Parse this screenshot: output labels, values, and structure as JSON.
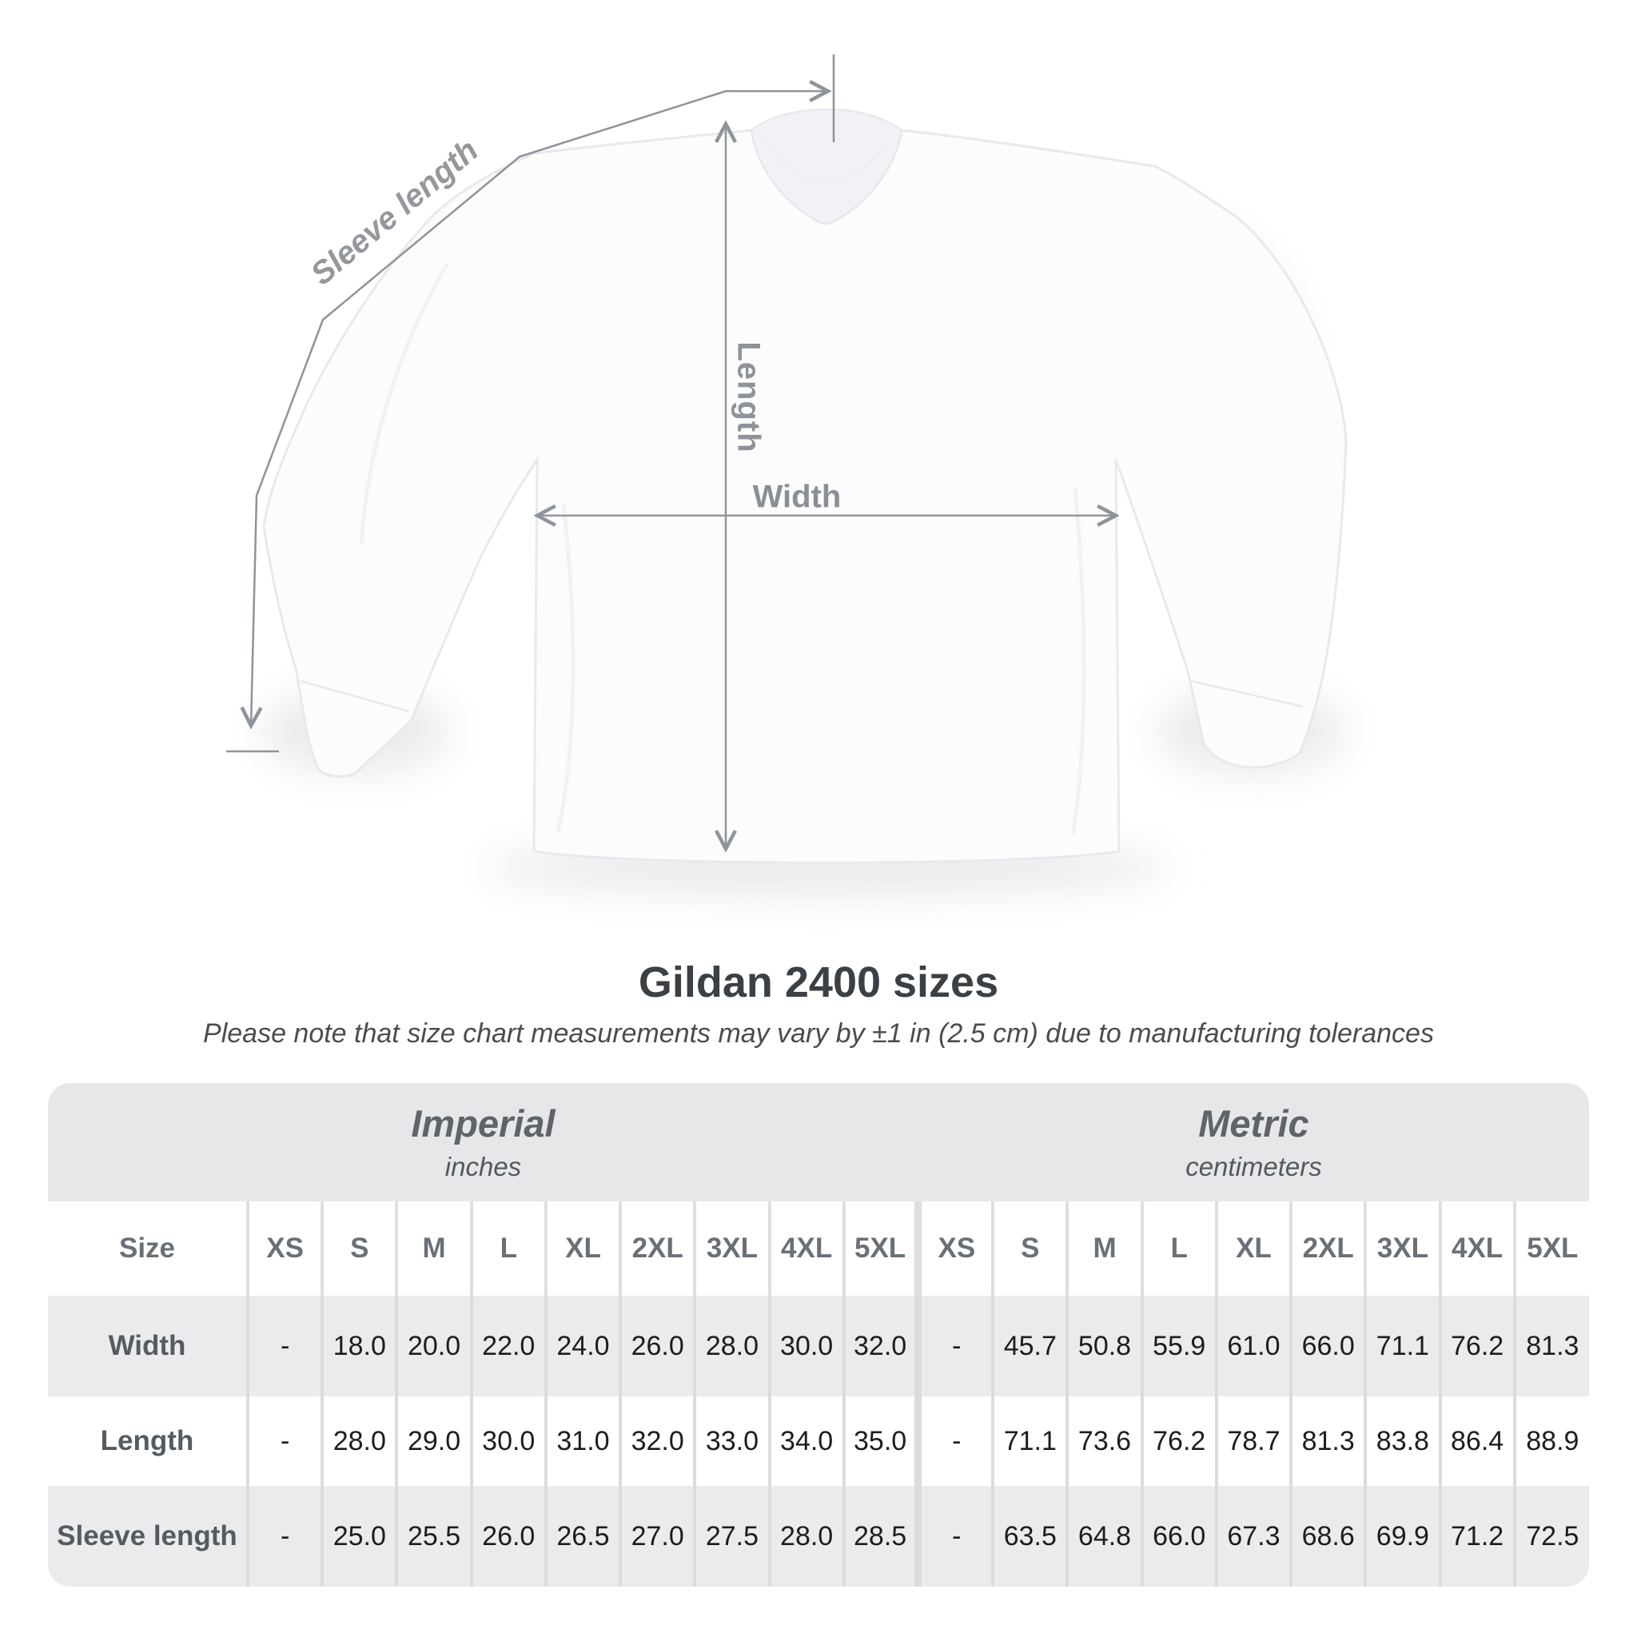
{
  "diagram": {
    "sleeve_length_label": "Sleeve length",
    "length_label": "Length",
    "width_label": "Width"
  },
  "title": "Gildan 2400 sizes",
  "subtitle": "Please note that size chart measurements may vary by ±1 in (2.5 cm) due to manufacturing tolerances",
  "table": {
    "corner_label": "Size",
    "sections": [
      {
        "name": "Imperial",
        "unit": "inches"
      },
      {
        "name": "Metric",
        "unit": "centimeters"
      }
    ],
    "sizes": [
      "XS",
      "S",
      "M",
      "L",
      "XL",
      "2XL",
      "3XL",
      "4XL",
      "5XL"
    ],
    "rows": [
      {
        "label": "Width",
        "imperial": [
          "-",
          "18.0",
          "20.0",
          "22.0",
          "24.0",
          "26.0",
          "28.0",
          "30.0",
          "32.0"
        ],
        "metric": [
          "-",
          "45.7",
          "50.8",
          "55.9",
          "61.0",
          "66.0",
          "71.1",
          "76.2",
          "81.3"
        ]
      },
      {
        "label": "Length",
        "imperial": [
          "-",
          "28.0",
          "29.0",
          "30.0",
          "31.0",
          "32.0",
          "33.0",
          "34.0",
          "35.0"
        ],
        "metric": [
          "-",
          "71.1",
          "73.6",
          "76.2",
          "78.7",
          "81.3",
          "83.8",
          "86.4",
          "88.9"
        ]
      },
      {
        "label": "Sleeve length",
        "imperial": [
          "-",
          "25.0",
          "25.5",
          "26.0",
          "26.5",
          "27.0",
          "27.5",
          "28.0",
          "28.5"
        ],
        "metric": [
          "-",
          "63.5",
          "64.8",
          "66.0",
          "67.3",
          "68.6",
          "69.9",
          "71.2",
          "72.5"
        ]
      }
    ]
  },
  "colors": {
    "band_bg": "#e7e7e9",
    "alt_row_bg": "#ebebed",
    "separator": "#dcdcde",
    "measure_line": "#8f949a",
    "diagram_label": "#8e9499",
    "title_text": "#3b4045",
    "value_text": "#1d1d1d"
  }
}
